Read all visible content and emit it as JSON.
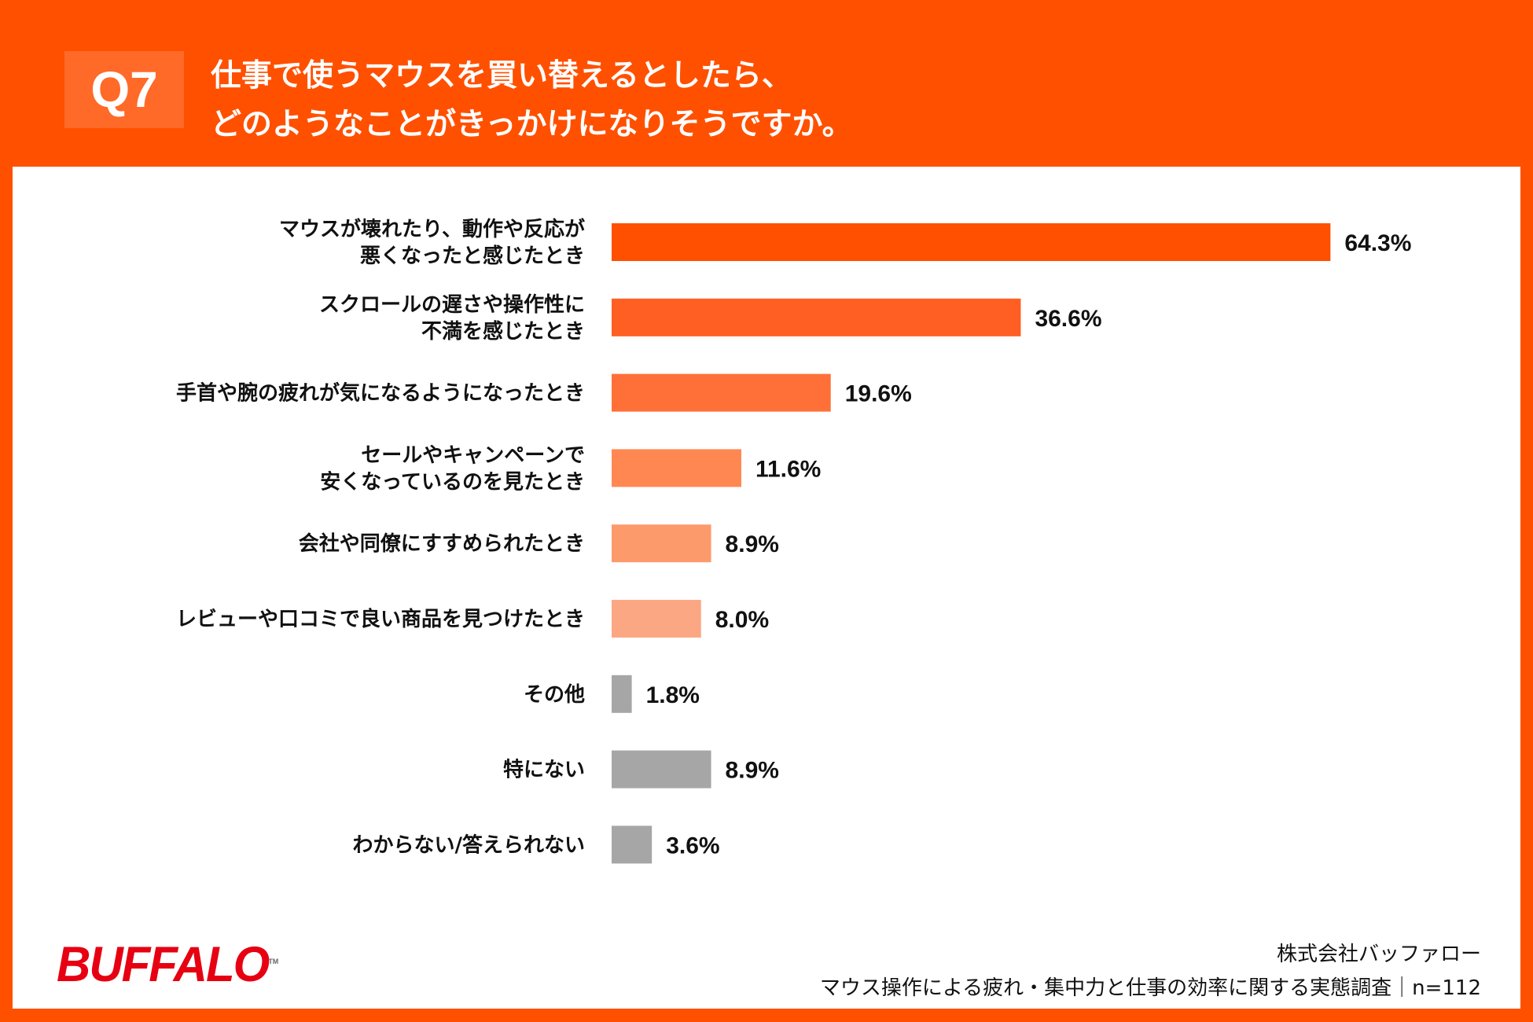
{
  "header": {
    "question_no": "Q7",
    "title_lines": [
      "仕事で使うマウスを買い替えるとしたら、",
      "どのようなことがきっかけになりそうですか。"
    ]
  },
  "chart_data": {
    "type": "bar",
    "orientation": "horizontal",
    "categories": [
      [
        "マウスが壊れたり、動作や反応が",
        "悪くなったと感じたとき"
      ],
      [
        "スクロールの遅さや操作性に",
        "不満を感じたとき"
      ],
      [
        "手首や腕の疲れが気になるようになったとき"
      ],
      [
        "セールやキャンペーンで",
        "安くなっているのを見たとき"
      ],
      [
        "会社や同僚にすすめられたとき"
      ],
      [
        "レビューや口コミで良い商品を見つけたとき"
      ],
      [
        "その他"
      ],
      [
        "特にない"
      ],
      [
        "わからない/答えられない"
      ]
    ],
    "values": [
      64.3,
      36.6,
      19.6,
      11.6,
      8.9,
      8.0,
      1.8,
      8.9,
      3.6
    ],
    "value_labels": [
      "64.3%",
      "36.6%",
      "19.6%",
      "11.6%",
      "8.9%",
      "8.0%",
      "1.8%",
      "8.9%",
      "3.6%"
    ],
    "colors": [
      "#ff4f00",
      "#ff5f22",
      "#ff7038",
      "#ff8752",
      "#fd9a6c",
      "#fca784",
      "#a6a6a6",
      "#a6a6a6",
      "#a6a6a6"
    ],
    "unit": "%",
    "grid": false,
    "legend": "none"
  },
  "footer": {
    "logo": "BUFFALO",
    "logo_tm": "TM",
    "company": "株式会社バッファロー",
    "survey": "マウス操作による疲れ・集中力と仕事の効率に関する実態調査｜n=112"
  },
  "colors": {
    "brand_orange": "#ff5000",
    "logo_red": "#e60012"
  }
}
